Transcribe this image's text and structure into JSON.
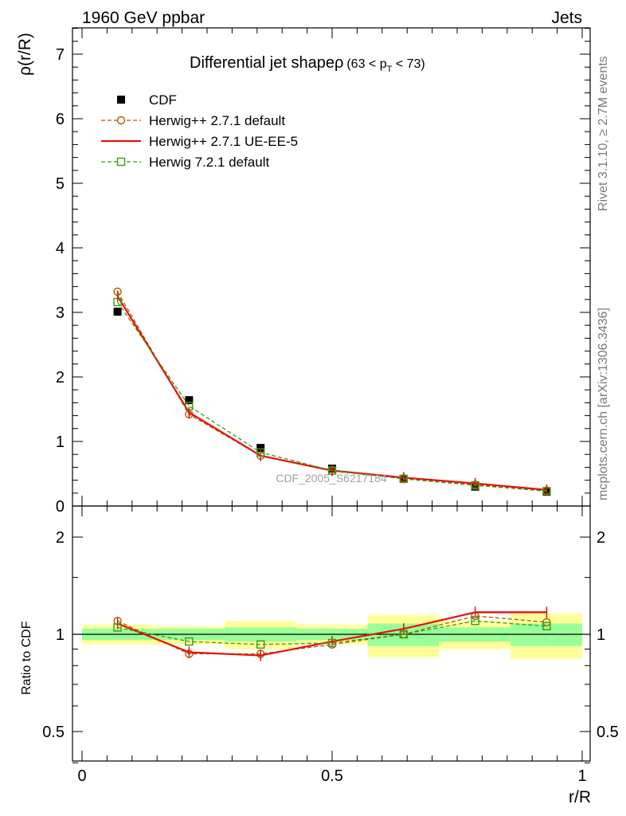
{
  "header": {
    "left": "1960 GeV ppbar",
    "right": "Jets",
    "side_top": "Rivet 3.1.10, ≥ 2.7M events",
    "side_bottom": "mcplots.cern.ch [arXiv:1306.3436]"
  },
  "chart_data": [
    {
      "type": "line",
      "title_main": "Differential jet shapeρ",
      "title_sub": "(63 < p",
      "title_sub_index": "T",
      "title_sub_end": " < 73)",
      "xlabel": "",
      "ylabel": "ρ(r/R)",
      "xlim": [
        0,
        1
      ],
      "ylim": [
        0,
        7.4
      ],
      "yticks": [
        0,
        1,
        2,
        3,
        4,
        5,
        6,
        7
      ],
      "watermark": "CDF_2005_S6217184",
      "x": [
        0.071,
        0.214,
        0.357,
        0.5,
        0.643,
        0.786,
        0.929
      ],
      "series": [
        {
          "name": "CDF",
          "style": "marker",
          "color": "#000000",
          "values": [
            3.01,
            1.64,
            0.9,
            0.58,
            0.42,
            0.3,
            0.22
          ]
        },
        {
          "name": "Herwig++ 2.7.1 default",
          "style": "dashed-circle",
          "color": "#b35900",
          "values": [
            3.32,
            1.42,
            0.78,
            0.54,
            0.43,
            0.33,
            0.24
          ]
        },
        {
          "name": "Herwig++ 2.7.1 UE-EE-5",
          "style": "solid",
          "color": "#e8120c",
          "values": [
            3.25,
            1.45,
            0.78,
            0.55,
            0.44,
            0.35,
            0.25
          ]
        },
        {
          "name": "Herwig 7.2.1 default",
          "style": "dashed-square",
          "color": "#3a9b14",
          "values": [
            3.16,
            1.55,
            0.83,
            0.55,
            0.42,
            0.32,
            0.23
          ]
        }
      ],
      "legend_position": "top-left"
    },
    {
      "type": "line",
      "xlabel": "r/R",
      "ylabel": "Ratio to CDF",
      "xlim": [
        0,
        1
      ],
      "ylim": [
        0.35,
        2.35
      ],
      "yticks": [
        "0.5",
        "1",
        "2"
      ],
      "xticks": [
        "0",
        "0.5",
        "1"
      ],
      "x": [
        0.071,
        0.214,
        0.357,
        0.5,
        0.643,
        0.786,
        0.929
      ],
      "band_edges": [
        0,
        0.143,
        0.286,
        0.429,
        0.571,
        0.714,
        0.857,
        1.0
      ],
      "band_inner": [
        [
          0.96,
          1.04
        ],
        [
          0.96,
          1.04
        ],
        [
          0.95,
          1.05
        ],
        [
          0.96,
          1.04
        ],
        [
          0.92,
          1.08
        ],
        [
          0.95,
          1.05
        ],
        [
          0.92,
          1.08
        ]
      ],
      "band_outer": [
        [
          0.93,
          1.07
        ],
        [
          0.93,
          1.06
        ],
        [
          0.9,
          1.1
        ],
        [
          0.93,
          1.07
        ],
        [
          0.85,
          1.15
        ],
        [
          0.9,
          1.1
        ],
        [
          0.84,
          1.16
        ]
      ],
      "series": [
        {
          "name": "Herwig++ 2.7.1 default",
          "values": [
            1.1,
            0.87,
            0.87,
            0.93,
            1.0,
            1.14,
            1.09
          ]
        },
        {
          "name": "Herwig++ 2.7.1 UE-EE-5",
          "values": [
            1.08,
            0.88,
            0.86,
            0.95,
            1.04,
            1.17,
            1.17
          ]
        },
        {
          "name": "Herwig 7.2.1 default",
          "values": [
            1.05,
            0.95,
            0.93,
            0.94,
            1.0,
            1.1,
            1.06
          ]
        }
      ]
    }
  ]
}
